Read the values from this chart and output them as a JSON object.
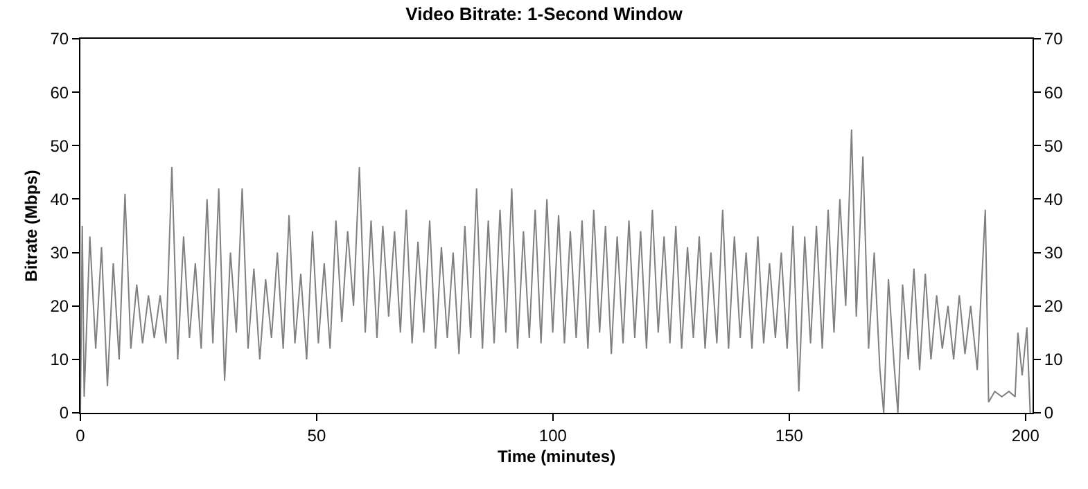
{
  "chart_data": {
    "type": "line",
    "title": "Video Bitrate: 1-Second Window",
    "xlabel": "Time (minutes)",
    "ylabel": "Bitrate (Mbps)",
    "xlim": [
      0,
      201.5
    ],
    "xticks": [
      0,
      50,
      100,
      150,
      200
    ],
    "ylim": [
      0,
      70
    ],
    "yticks": [
      0,
      10,
      20,
      30,
      40,
      50,
      60,
      70
    ],
    "y2lim": [
      0,
      70
    ],
    "y2ticks": [
      0,
      10,
      20,
      30,
      40,
      50,
      60,
      70
    ],
    "marker": "none",
    "line_style": "solid",
    "x": [
      0,
      0.4,
      0.8,
      2,
      3.24,
      4.48,
      5.72,
      6.96,
      8.2,
      9.44,
      10.68,
      11.92,
      13.16,
      14.4,
      15.64,
      16.88,
      18.12,
      19.36,
      20.6,
      21.84,
      23.08,
      24.32,
      25.56,
      26.8,
      28.04,
      29.28,
      30.52,
      31.76,
      33,
      34.24,
      35.48,
      36.72,
      37.96,
      39.2,
      40.44,
      41.68,
      42.92,
      44.16,
      45.4,
      46.64,
      47.88,
      49.12,
      50.36,
      51.6,
      52.84,
      54.08,
      55.32,
      56.56,
      57.8,
      59.04,
      60.28,
      61.52,
      62.76,
      64,
      65.24,
      66.48,
      67.72,
      68.96,
      70.2,
      71.44,
      72.68,
      73.92,
      75.16,
      76.4,
      77.64,
      78.88,
      80.12,
      81.36,
      82.6,
      83.84,
      85.08,
      86.32,
      87.56,
      88.8,
      90.04,
      91.28,
      92.52,
      93.76,
      95,
      96.24,
      97.48,
      98.72,
      99.96,
      101.2,
      102.44,
      103.68,
      104.92,
      106.16,
      107.4,
      108.64,
      109.88,
      111.12,
      112.36,
      113.6,
      114.84,
      116.08,
      117.32,
      118.56,
      119.8,
      121.04,
      122.28,
      123.52,
      124.76,
      126,
      127.24,
      128.48,
      129.72,
      130.96,
      132.2,
      133.44,
      134.68,
      135.92,
      137.16,
      138.4,
      139.64,
      140.88,
      142.12,
      143.36,
      144.6,
      145.84,
      147.08,
      148.32,
      149.56,
      150.8,
      152.04,
      153.28,
      154.52,
      155.76,
      157,
      158.24,
      159.48,
      160.72,
      161.96,
      163.2,
      164.2,
      165.6,
      166.8,
      168,
      169.2,
      170,
      171,
      172.2,
      173,
      174,
      175.2,
      176.4,
      177.6,
      178.8,
      180,
      181.2,
      182.4,
      183.6,
      184.8,
      186,
      187.2,
      188.4,
      189.8,
      191.5,
      192.2,
      193.5,
      195,
      196.5,
      197.8,
      198.4,
      199.3,
      200.3,
      201
    ],
    "series": [
      {
        "color": "#808080",
        "values": [
          0,
          35,
          3,
          33,
          12,
          31,
          5,
          28,
          10,
          41,
          12,
          24,
          13,
          22,
          14,
          22,
          13,
          46,
          10,
          33,
          14,
          28,
          12,
          40,
          13,
          42,
          6,
          30,
          15,
          42,
          12,
          27,
          10,
          25,
          14,
          30,
          12,
          37,
          13,
          26,
          10,
          34,
          13,
          28,
          12,
          36,
          17,
          34,
          20,
          46,
          15,
          36,
          14,
          35,
          18,
          34,
          15,
          38,
          13,
          32,
          15,
          36,
          12,
          31,
          14,
          30,
          11,
          35,
          14,
          42,
          12,
          36,
          13,
          38,
          15,
          42,
          12,
          34,
          14,
          38,
          13,
          40,
          15,
          37,
          13,
          34,
          14,
          36,
          12,
          38,
          15,
          35,
          11,
          33,
          13,
          36,
          14,
          34,
          12,
          38,
          15,
          33,
          13,
          35,
          12,
          31,
          14,
          33,
          12,
          30,
          13,
          38,
          12,
          33,
          14,
          30,
          12,
          33,
          13,
          28,
          14,
          30,
          12,
          35,
          4,
          33,
          13,
          35,
          12,
          38,
          15,
          40,
          20,
          53,
          18,
          48,
          12,
          30,
          8,
          0,
          25,
          9,
          0,
          24,
          10,
          27,
          8,
          26,
          10,
          22,
          12,
          20,
          10,
          22,
          11,
          20,
          8,
          38,
          2,
          4,
          3,
          4,
          3,
          15,
          7,
          16,
          0
        ]
      }
    ]
  }
}
